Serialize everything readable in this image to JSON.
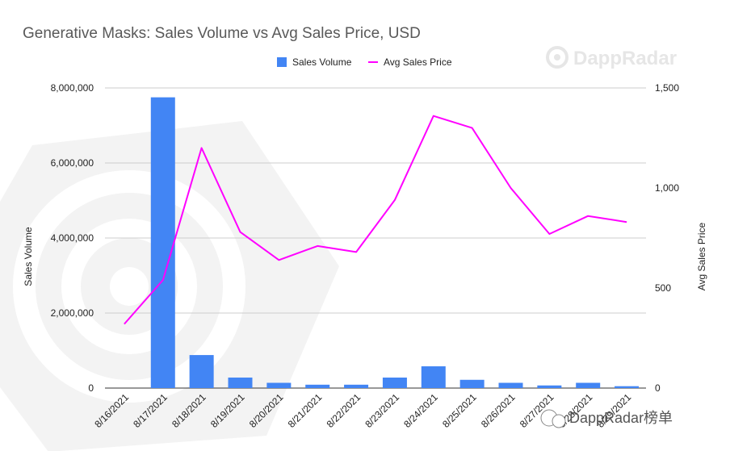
{
  "chart_data": {
    "type": "bar",
    "title": "Generative Masks: Sales Volume vs Avg Sales Price, USD",
    "categories": [
      "8/16/2021",
      "8/17/2021",
      "8/18/2021",
      "8/19/2021",
      "8/20/2021",
      "8/21/2021",
      "8/22/2021",
      "8/23/2021",
      "8/24/2021",
      "8/25/2021",
      "8/26/2021",
      "8/27/2021",
      "8/28/2021",
      "8/29/2021"
    ],
    "series": [
      {
        "name": "Sales Volume",
        "type": "bar",
        "axis": "left",
        "color": "#4285f4",
        "values": [
          0,
          7750000,
          880000,
          280000,
          140000,
          90000,
          90000,
          280000,
          580000,
          220000,
          140000,
          70000,
          140000,
          50000
        ]
      },
      {
        "name": "Avg Sales Price",
        "type": "line",
        "axis": "right",
        "color": "#ff00ff",
        "values": [
          320,
          540,
          1200,
          780,
          640,
          710,
          680,
          940,
          1360,
          1300,
          1000,
          770,
          860,
          830
        ]
      }
    ],
    "ylabel": "Sales Volume",
    "ylabel_right": "Avg Sales Price",
    "ylim": [
      0,
      8000000
    ],
    "ylim_right": [
      0,
      1500
    ],
    "yticks": [
      "0",
      "2,000,000",
      "4,000,000",
      "6,000,000",
      "8,000,000"
    ],
    "yticks_right": [
      "0",
      "500",
      "1,000",
      "1,500"
    ],
    "grid": true,
    "legend_position": "top-center"
  },
  "watermark": {
    "top_text": "DappRadar",
    "bottom_text": "DappRadar榜单"
  }
}
